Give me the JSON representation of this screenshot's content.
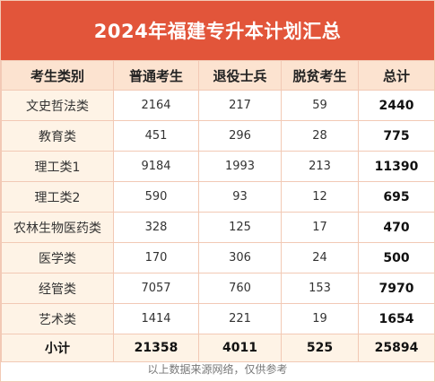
{
  "title": "2024年福建专升本计划汇总",
  "headers": [
    "考生类别",
    "普通考生",
    "退役士兵",
    "脱贫考生",
    "总计"
  ],
  "rows": [
    {
      "category": "文史哲法类",
      "regular": "2164",
      "veterans": "217",
      "poverty": "59",
      "total": "2440"
    },
    {
      "category": "教育类",
      "regular": "451",
      "veterans": "296",
      "poverty": "28",
      "total": "775"
    },
    {
      "category": "理工类1",
      "regular": "9184",
      "veterans": "1993",
      "poverty": "213",
      "total": "11390"
    },
    {
      "category": "理工类2",
      "regular": "590",
      "veterans": "93",
      "poverty": "12",
      "total": "695"
    },
    {
      "category": "农林生物医药类",
      "regular": "328",
      "veterans": "125",
      "poverty": "17",
      "total": "470"
    },
    {
      "category": "医学类",
      "regular": "170",
      "veterans": "306",
      "poverty": "24",
      "total": "500"
    },
    {
      "category": "经管类",
      "regular": "7057",
      "veterans": "760",
      "poverty": "153",
      "total": "7970"
    },
    {
      "category": "艺术类",
      "regular": "1414",
      "veterans": "221",
      "poverty": "19",
      "total": "1654"
    }
  ],
  "summary": {
    "label": "小计",
    "regular": "21358",
    "veterans": "4011",
    "poverty": "525",
    "total": "25894"
  },
  "footer": "以上数据来源网络，仅供参考",
  "colors": {
    "title_bg": "#e2553a",
    "header_bg": "#fce3d0",
    "category_bg": "#fef3e6",
    "border": "#f2c9b5"
  }
}
